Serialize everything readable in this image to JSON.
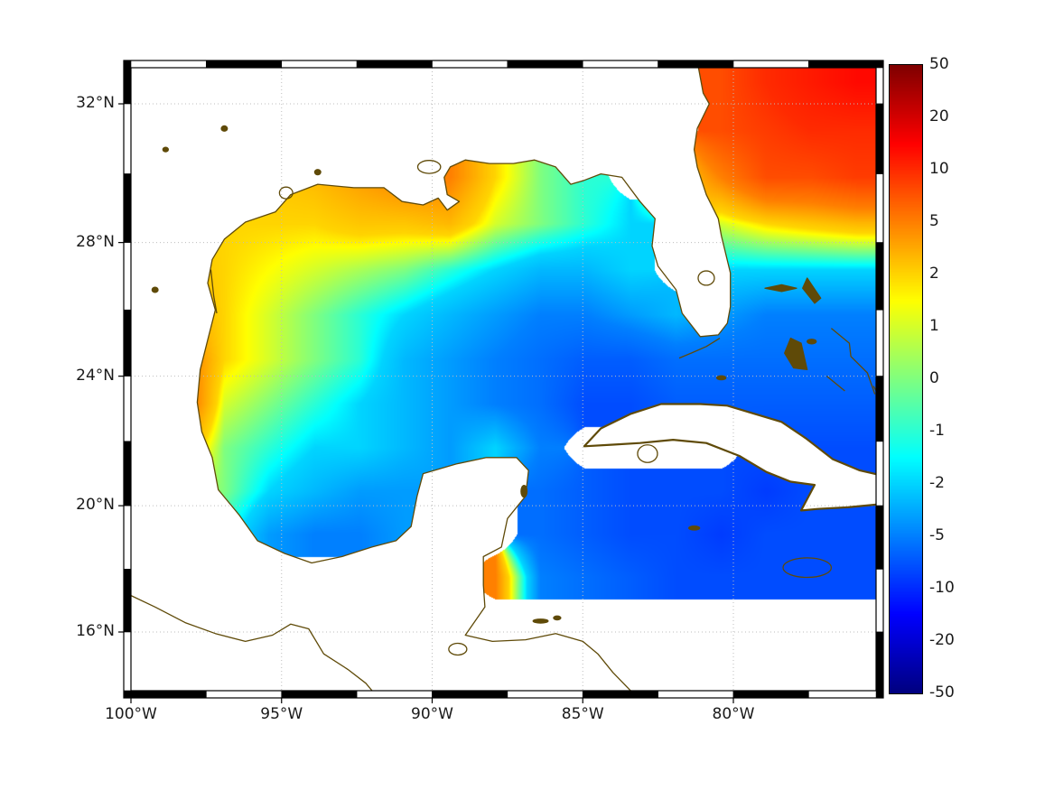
{
  "page": {
    "background": "#ffffff"
  },
  "map": {
    "x_axis": {
      "ticks": [
        {
          "label": "100°W",
          "lon": -100
        },
        {
          "label": "95°W",
          "lon": -95
        },
        {
          "label": "90°W",
          "lon": -90
        },
        {
          "label": "85°W",
          "lon": -85
        },
        {
          "label": "80°W",
          "lon": -80
        }
      ]
    },
    "y_axis": {
      "ticks": [
        {
          "label": "16°N",
          "lat": 16
        },
        {
          "label": "20°N",
          "lat": 20
        },
        {
          "label": "24°N",
          "lat": 24
        },
        {
          "label": "28°N",
          "lat": 28
        },
        {
          "label": "32°N",
          "lat": 32
        }
      ]
    },
    "colors": {
      "coastline": "#5f4a08",
      "grid": "#bdbdbd",
      "frame": "#000000",
      "land_fill": "#ffffff"
    }
  },
  "colorbar": {
    "tick_labels": [
      "50",
      "20",
      "10",
      "5",
      "2",
      "1",
      "0",
      "-1",
      "-2",
      "-5",
      "-10",
      "-20",
      "-50"
    ],
    "colormap": "jet"
  },
  "chart_data": {
    "type": "heatmap",
    "title": "",
    "projection": "mercator",
    "region": "Gulf of Mexico / NW Caribbean / W Atlantic",
    "lon_range": [
      -100,
      -75.26
    ],
    "lat_range": [
      14.1,
      33.05
    ],
    "colorbar_ticks": [
      50,
      20,
      10,
      5,
      2,
      1,
      0,
      -1,
      -2,
      -5,
      -10,
      -20,
      -50
    ],
    "grid_lon": [
      -99.9,
      -98.4,
      -96.9,
      -95.4,
      -93.9,
      -92.4,
      -90.9,
      -89.4,
      -87.9,
      -86.4,
      -84.9,
      -83.4,
      -81.9,
      -80.4,
      -78.9,
      -77.4,
      -75.9
    ],
    "grid_lat": [
      32.6,
      31.25,
      29.9,
      28.55,
      27.2,
      25.85,
      24.5,
      23.15,
      21.8,
      20.45,
      19.1,
      17.75,
      16.4,
      15.05
    ],
    "values": [
      [
        null,
        null,
        null,
        null,
        null,
        null,
        null,
        null,
        null,
        null,
        null,
        null,
        null,
        8,
        10,
        12,
        14
      ],
      [
        null,
        null,
        null,
        null,
        null,
        null,
        null,
        null,
        null,
        null,
        null,
        null,
        null,
        8,
        9,
        10,
        10
      ],
      [
        null,
        2,
        2,
        2.5,
        3,
        4,
        5,
        5,
        2,
        0,
        -1,
        null,
        2,
        5,
        8,
        8,
        9
      ],
      [
        null,
        2,
        2,
        2,
        2,
        2.5,
        2.5,
        3,
        1,
        0,
        -1,
        -2,
        null,
        1,
        2,
        2.5,
        3
      ],
      [
        null,
        3,
        2,
        1.5,
        1,
        0.5,
        0,
        -1,
        -2,
        -3,
        -3,
        -2,
        null,
        -2,
        -2,
        -2,
        -2
      ],
      [
        null,
        4,
        2,
        1,
        0,
        -1,
        -2,
        -3,
        -4,
        -5,
        -5,
        -4,
        -3,
        -4,
        -5,
        -5,
        -5
      ],
      [
        null,
        6,
        2,
        1,
        0,
        -1,
        -3,
        -4,
        -5,
        -6,
        -7,
        -7,
        -6,
        -6,
        -6,
        -6,
        -6
      ],
      [
        null,
        7,
        1,
        0,
        -1,
        -2,
        -3,
        -4,
        -5,
        -6,
        -8,
        -8,
        -7,
        -7,
        -7,
        -7,
        -7
      ],
      [
        null,
        4,
        0,
        -1,
        -2,
        -2,
        -3,
        -4,
        -2,
        -5,
        null,
        null,
        null,
        null,
        -8,
        -8,
        -8
      ],
      [
        null,
        1,
        0,
        -2,
        -3,
        -4,
        -4,
        null,
        null,
        -6,
        -7,
        -8,
        -8,
        -8,
        -9,
        -8,
        -8
      ],
      [
        null,
        null,
        -1,
        -4,
        -5,
        -5,
        -4,
        null,
        null,
        -6,
        -7,
        -8,
        -8,
        -9,
        -8,
        -8,
        -8
      ],
      [
        null,
        null,
        null,
        null,
        null,
        null,
        null,
        null,
        5,
        -5,
        -6,
        -7,
        -8,
        -8,
        -8,
        -8,
        -8
      ],
      [
        null,
        null,
        null,
        null,
        null,
        null,
        null,
        null,
        null,
        null,
        null,
        null,
        null,
        null,
        null,
        null,
        null
      ],
      [
        null,
        null,
        null,
        null,
        null,
        null,
        null,
        null,
        null,
        null,
        null,
        null,
        null,
        null,
        null,
        null,
        null
      ]
    ],
    "coastlines": {
      "mainland": [
        [
          -100.3,
          33.2
        ],
        [
          -81.2,
          33.2
        ],
        [
          -81.0,
          32.3
        ],
        [
          -80.8,
          32.0
        ],
        [
          -81.2,
          31.3
        ],
        [
          -81.3,
          30.7
        ],
        [
          -81.2,
          30.2
        ],
        [
          -80.9,
          29.4
        ],
        [
          -80.5,
          28.7
        ],
        [
          -80.4,
          28.2
        ],
        [
          -80.1,
          27.1
        ],
        [
          -80.1,
          26.1
        ],
        [
          -80.2,
          25.6
        ],
        [
          -80.5,
          25.25
        ],
        [
          -81.1,
          25.2
        ],
        [
          -81.7,
          25.9
        ],
        [
          -81.9,
          26.6
        ],
        [
          -82.5,
          27.3
        ],
        [
          -82.7,
          27.9
        ],
        [
          -82.6,
          28.7
        ],
        [
          -83.1,
          29.2
        ],
        [
          -83.7,
          29.9
        ],
        [
          -84.4,
          30.0
        ],
        [
          -85.0,
          29.8
        ],
        [
          -85.4,
          29.7
        ],
        [
          -85.9,
          30.2
        ],
        [
          -86.6,
          30.4
        ],
        [
          -87.3,
          30.3
        ],
        [
          -88.1,
          30.3
        ],
        [
          -88.9,
          30.4
        ],
        [
          -89.4,
          30.2
        ],
        [
          -89.6,
          29.9
        ],
        [
          -89.5,
          29.4
        ],
        [
          -89.1,
          29.2
        ],
        [
          -89.5,
          28.95
        ],
        [
          -89.8,
          29.3
        ],
        [
          -90.3,
          29.1
        ],
        [
          -91.0,
          29.2
        ],
        [
          -91.6,
          29.6
        ],
        [
          -92.6,
          29.6
        ],
        [
          -93.8,
          29.7
        ],
        [
          -94.7,
          29.4
        ],
        [
          -95.2,
          28.9
        ],
        [
          -96.2,
          28.6
        ],
        [
          -96.9,
          28.1
        ],
        [
          -97.3,
          27.5
        ],
        [
          -97.45,
          26.8
        ],
        [
          -97.2,
          26.0
        ],
        [
          -97.45,
          25.1
        ],
        [
          -97.7,
          24.2
        ],
        [
          -97.8,
          23.2
        ],
        [
          -97.65,
          22.3
        ],
        [
          -97.3,
          21.5
        ],
        [
          -97.1,
          20.5
        ],
        [
          -96.4,
          19.7
        ],
        [
          -95.8,
          18.9
        ],
        [
          -94.9,
          18.5
        ],
        [
          -94.0,
          18.2
        ],
        [
          -93.0,
          18.4
        ],
        [
          -92.0,
          18.7
        ],
        [
          -91.2,
          18.9
        ],
        [
          -90.7,
          19.35
        ],
        [
          -90.5,
          20.3
        ],
        [
          -90.3,
          21.0
        ],
        [
          -89.2,
          21.3
        ],
        [
          -88.2,
          21.5
        ],
        [
          -87.2,
          21.5
        ],
        [
          -86.8,
          21.1
        ],
        [
          -86.9,
          20.3
        ],
        [
          -87.5,
          19.6
        ],
        [
          -87.7,
          18.7
        ],
        [
          -88.3,
          18.4
        ],
        [
          -88.3,
          17.5
        ],
        [
          -88.25,
          16.8
        ],
        [
          -88.9,
          15.9
        ],
        [
          -88.0,
          15.7
        ],
        [
          -86.9,
          15.75
        ],
        [
          -85.9,
          15.95
        ],
        [
          -85.0,
          15.7
        ],
        [
          -84.5,
          15.3
        ],
        [
          -84.0,
          14.7
        ],
        [
          -83.3,
          14.0
        ],
        [
          -100.3,
          14.0
        ]
      ],
      "cuba": [
        [
          -84.95,
          21.85
        ],
        [
          -84.4,
          22.4
        ],
        [
          -83.4,
          22.85
        ],
        [
          -82.4,
          23.15
        ],
        [
          -81.1,
          23.15
        ],
        [
          -80.2,
          23.1
        ],
        [
          -79.3,
          22.85
        ],
        [
          -78.4,
          22.6
        ],
        [
          -77.6,
          22.1
        ],
        [
          -76.7,
          21.45
        ],
        [
          -75.8,
          21.1
        ],
        [
          -75.1,
          20.95
        ],
        [
          -75.1,
          20.05
        ],
        [
          -76.2,
          19.95
        ],
        [
          -77.2,
          19.9
        ],
        [
          -77.75,
          19.85
        ],
        [
          -77.3,
          20.65
        ],
        [
          -78.1,
          20.75
        ],
        [
          -78.9,
          21.05
        ],
        [
          -79.8,
          21.55
        ],
        [
          -80.9,
          21.95
        ],
        [
          -82.0,
          22.05
        ],
        [
          -83.1,
          21.95
        ],
        [
          -84.0,
          21.9
        ]
      ],
      "islands": [
        {
          "name": "grand-bahama",
          "points": [
            [
              -78.95,
              26.65
            ],
            [
              -78.4,
              26.55
            ],
            [
              -77.9,
              26.65
            ],
            [
              -78.4,
              26.75
            ]
          ]
        },
        {
          "name": "abaco",
          "points": [
            [
              -77.55,
              26.95
            ],
            [
              -77.1,
              26.35
            ],
            [
              -77.3,
              26.2
            ],
            [
              -77.7,
              26.65
            ]
          ]
        },
        {
          "name": "andros",
          "points": [
            [
              -78.3,
              24.7
            ],
            [
              -78.1,
              25.15
            ],
            [
              -77.75,
              25.0
            ],
            [
              -77.55,
              24.2
            ],
            [
              -78.0,
              24.25
            ]
          ]
        }
      ],
      "lines": [
        {
          "name": "eleuthera-chain",
          "points": [
            [
              -76.75,
              25.45
            ],
            [
              -76.15,
              25.0
            ],
            [
              -76.1,
              24.6
            ],
            [
              -75.55,
              24.1
            ],
            [
              -75.3,
              23.45
            ]
          ]
        },
        {
          "name": "exuma-cays",
          "points": [
            [
              -76.9,
              24.0
            ],
            [
              -76.3,
              23.55
            ]
          ]
        },
        {
          "name": "long-island-bahamas",
          "points": [
            [
              -75.35,
              23.7
            ],
            [
              -75.0,
              23.1
            ]
          ]
        },
        {
          "name": "florida-keys",
          "points": [
            [
              -80.45,
              25.15
            ],
            [
              -80.9,
              24.9
            ],
            [
              -81.4,
              24.7
            ],
            [
              -81.8,
              24.55
            ]
          ]
        },
        {
          "name": "laguna-madre",
          "points": [
            [
              -97.35,
              27.2
            ],
            [
              -97.25,
              26.4
            ],
            [
              -97.15,
              25.9
            ]
          ]
        },
        {
          "name": "pacific-coast",
          "points": [
            [
              -100.3,
              17.3
            ],
            [
              -99.2,
              16.8
            ],
            [
              -98.2,
              16.3
            ],
            [
              -97.2,
              15.95
            ],
            [
              -96.2,
              15.7
            ],
            [
              -95.3,
              15.9
            ],
            [
              -94.7,
              16.25
            ],
            [
              -94.1,
              16.1
            ],
            [
              -93.6,
              15.3
            ],
            [
              -92.8,
              14.8
            ],
            [
              -92.2,
              14.35
            ],
            [
              -91.9,
              14.0
            ]
          ]
        }
      ],
      "rings": [
        {
          "name": "jamaica",
          "lon": -77.55,
          "lat": 18.05,
          "rx": 0.8,
          "ry": 0.3
        },
        {
          "name": "lake-okeechobee",
          "lon": -80.9,
          "lat": 26.95,
          "rx": 0.27,
          "ry": 0.22
        },
        {
          "name": "lake-pontchartrain",
          "lon": -90.1,
          "lat": 30.2,
          "rx": 0.38,
          "ry": 0.2
        },
        {
          "name": "galveston-bay",
          "lon": -94.85,
          "lat": 29.45,
          "rx": 0.22,
          "ry": 0.18
        },
        {
          "name": "lake-izabal",
          "lon": -89.15,
          "lat": 15.45,
          "rx": 0.3,
          "ry": 0.18
        },
        {
          "name": "isla-juventud",
          "lon": -82.85,
          "lat": 21.62,
          "rx": 0.33,
          "ry": 0.27
        }
      ],
      "specks": [
        {
          "name": "cozumel",
          "lon": -86.95,
          "lat": 20.45,
          "rx": 0.1,
          "ry": 0.18
        },
        {
          "name": "grand-cayman",
          "lon": -81.3,
          "lat": 19.3,
          "rx": 0.18,
          "ry": 0.06
        },
        {
          "name": "roatan",
          "lon": -86.4,
          "lat": 16.35,
          "rx": 0.25,
          "ry": 0.06
        },
        {
          "name": "guanaja",
          "lon": -85.85,
          "lat": 16.45,
          "rx": 0.12,
          "ry": 0.06
        },
        {
          "name": "texas-lake-1",
          "lon": -96.9,
          "lat": 31.3,
          "rx": 0.1,
          "ry": 0.08
        },
        {
          "name": "texas-lake-2",
          "lon": -98.85,
          "lat": 30.7,
          "rx": 0.09,
          "ry": 0.07
        },
        {
          "name": "louisiana-lake",
          "lon": -93.8,
          "lat": 30.05,
          "rx": 0.1,
          "ry": 0.08
        },
        {
          "name": "falcon-reservoir",
          "lon": -99.2,
          "lat": 26.6,
          "rx": 0.1,
          "ry": 0.08
        },
        {
          "name": "cay-sal",
          "lon": -80.4,
          "lat": 23.95,
          "rx": 0.15,
          "ry": 0.06
        },
        {
          "name": "new-providence",
          "lon": -77.4,
          "lat": 25.05,
          "rx": 0.15,
          "ry": 0.07
        }
      ]
    }
  }
}
